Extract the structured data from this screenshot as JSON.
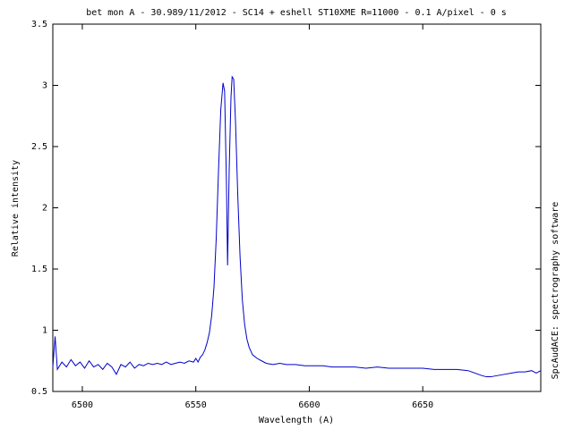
{
  "chart_data": {
    "type": "line",
    "title": "bet mon A - 30.989/11/2012 - SC14 + eshell ST10XME R=11000 - 0.1 A/pixel - 0 s",
    "x_label": "Wavelength (A)",
    "y_label": "Relative intensity",
    "side_note": "SpcAudACE: spectrography software",
    "color": "#0000cc",
    "x": [
      6487,
      6488,
      6489,
      6491,
      6493,
      6495,
      6497,
      6499,
      6501,
      6503,
      6505,
      6507,
      6509,
      6511,
      6513,
      6515,
      6517,
      6519,
      6521,
      6523,
      6525,
      6527,
      6529,
      6531,
      6533,
      6535,
      6537,
      6539,
      6541,
      6543,
      6545,
      6547,
      6549,
      6550,
      6551,
      6552,
      6553,
      6554,
      6555,
      6556,
      6557,
      6558,
      6559,
      6560,
      6561,
      6562,
      6562.7,
      6563.5,
      6564,
      6564.7,
      6565.5,
      6566,
      6566.7,
      6567.5,
      6568.5,
      6569.5,
      6570.5,
      6571.5,
      6572.5,
      6573.5,
      6575,
      6577,
      6579,
      6581,
      6584,
      6587,
      6590,
      6594,
      6598,
      6602,
      6606,
      6610,
      6615,
      6620,
      6625,
      6630,
      6635,
      6640,
      6645,
      6650,
      6655,
      6660,
      6665,
      6670,
      6673,
      6676,
      6678,
      6680,
      6683,
      6686,
      6689,
      6692,
      6695,
      6698,
      6700,
      6702
    ],
    "values": [
      0.7,
      0.95,
      0.68,
      0.74,
      0.7,
      0.76,
      0.71,
      0.74,
      0.69,
      0.75,
      0.7,
      0.72,
      0.68,
      0.73,
      0.7,
      0.64,
      0.72,
      0.7,
      0.74,
      0.69,
      0.72,
      0.71,
      0.73,
      0.72,
      0.73,
      0.72,
      0.74,
      0.72,
      0.73,
      0.74,
      0.73,
      0.75,
      0.74,
      0.77,
      0.74,
      0.78,
      0.8,
      0.84,
      0.9,
      0.98,
      1.12,
      1.35,
      1.75,
      2.3,
      2.8,
      3.02,
      2.95,
      2.2,
      1.53,
      2.3,
      2.9,
      3.07,
      3.05,
      2.7,
      2.1,
      1.6,
      1.25,
      1.05,
      0.93,
      0.86,
      0.8,
      0.77,
      0.75,
      0.73,
      0.72,
      0.73,
      0.72,
      0.72,
      0.71,
      0.71,
      0.71,
      0.7,
      0.7,
      0.7,
      0.69,
      0.7,
      0.69,
      0.69,
      0.69,
      0.69,
      0.68,
      0.68,
      0.68,
      0.67,
      0.65,
      0.63,
      0.62,
      0.62,
      0.63,
      0.64,
      0.65,
      0.66,
      0.66,
      0.67,
      0.65,
      0.67
    ],
    "xlim": [
      6487,
      6702
    ],
    "xticks": [
      6500,
      6550,
      6600,
      6650
    ],
    "ylim": [
      0.5,
      3.5
    ],
    "yticks": [
      0.5,
      1,
      1.5,
      2,
      2.5,
      3,
      3.5
    ],
    "grid": false
  }
}
